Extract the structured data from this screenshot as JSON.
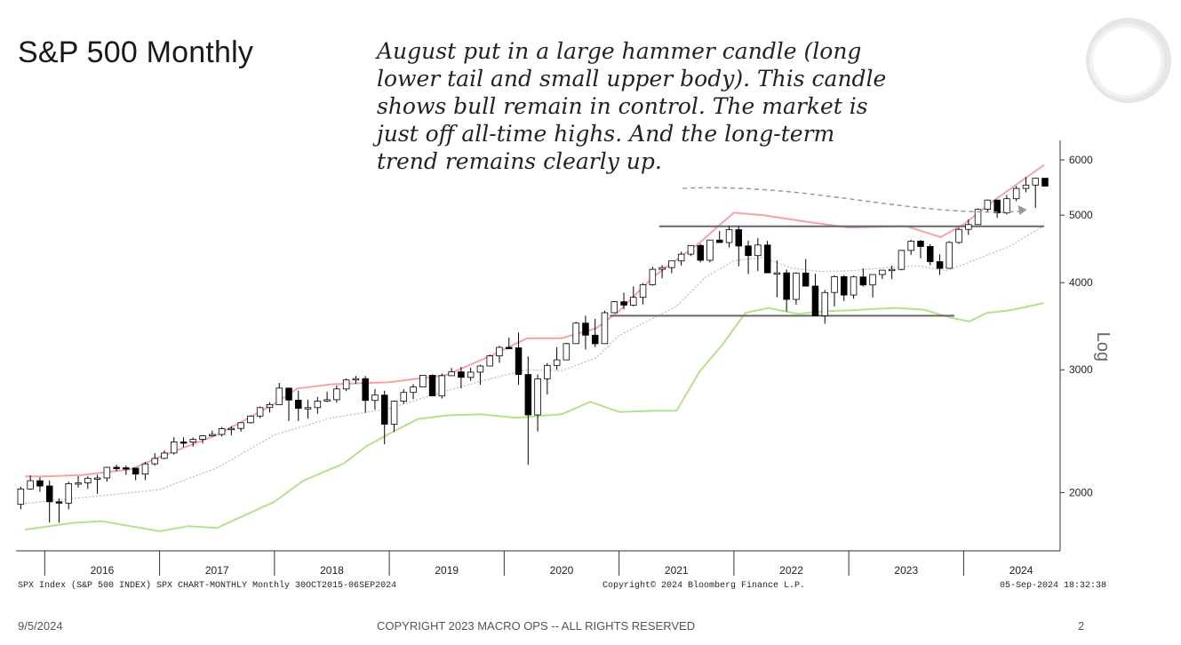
{
  "slide": {
    "title": "S&P 500 Monthly",
    "annotation_lines": [
      "August put in a large hammer candle (long",
      "lower tail and small upper body). This candle",
      "shows bull remain in control. The market is",
      "just off all-time highs. And the long-term",
      "trend remains clearly up."
    ],
    "footer": {
      "date": "9/5/2024",
      "copyright": "COPYRIGHT 2023 MACRO OPS -- ALL RIGHTS RESERVED",
      "page": "2"
    }
  },
  "chart_data": {
    "type": "candlestick",
    "title": "S&P 500 Monthly",
    "y_scale": "log",
    "ylabel": "Log",
    "y_ticks": [
      2000,
      3000,
      4000,
      5000,
      6000
    ],
    "ylim": [
      1650,
      6400
    ],
    "x_labels": [
      "2016",
      "2017",
      "2018",
      "2019",
      "2020",
      "2021",
      "2022",
      "2023",
      "2024"
    ],
    "x_range": [
      "2015-10",
      "2024-09"
    ],
    "grid": false,
    "source_left": "SPX Index (S&P 500 INDEX) SPX CHART-MONTHLY  Monthly 30OCT2015-06SEP2024",
    "source_center": "Copyright© 2024 Bloomberg Finance L.P.",
    "source_right": "05-Sep-2024 18:32:38",
    "colors": {
      "up": "#ffffff",
      "down": "#000000",
      "upper_band": "#f4a3a8",
      "lower_band": "#b5e08c",
      "mid_line": "#bbbbbb",
      "level_line": "#666666"
    },
    "candles_ohlc_monthly_from_2015_10": [
      [
        1924,
        2039,
        1893,
        2024
      ],
      [
        2024,
        2116,
        2019,
        2080
      ],
      [
        2080,
        2104,
        2005,
        2044
      ],
      [
        2044,
        2081,
        1812,
        1940
      ],
      [
        1940,
        1962,
        1810,
        1932
      ],
      [
        1932,
        2073,
        1892,
        2060
      ],
      [
        2060,
        2111,
        2033,
        2065
      ],
      [
        2065,
        2111,
        2025,
        2097
      ],
      [
        2097,
        2121,
        1992,
        2099
      ],
      [
        2099,
        2178,
        2074,
        2174
      ],
      [
        2174,
        2193,
        2147,
        2171
      ],
      [
        2171,
        2188,
        2120,
        2168
      ],
      [
        2168,
        2169,
        2083,
        2126
      ],
      [
        2126,
        2214,
        2084,
        2199
      ],
      [
        2199,
        2278,
        2187,
        2239
      ],
      [
        2239,
        2300,
        2233,
        2279
      ],
      [
        2279,
        2401,
        2268,
        2364
      ],
      [
        2364,
        2400,
        2322,
        2363
      ],
      [
        2363,
        2399,
        2328,
        2384
      ],
      [
        2384,
        2418,
        2352,
        2412
      ],
      [
        2412,
        2454,
        2405,
        2423
      ],
      [
        2423,
        2484,
        2407,
        2470
      ],
      [
        2470,
        2491,
        2417,
        2472
      ],
      [
        2472,
        2520,
        2446,
        2519
      ],
      [
        2519,
        2582,
        2511,
        2575
      ],
      [
        2575,
        2657,
        2557,
        2648
      ],
      [
        2648,
        2695,
        2605,
        2674
      ],
      [
        2674,
        2873,
        2674,
        2824
      ],
      [
        2824,
        2790,
        2533,
        2714
      ],
      [
        2714,
        2801,
        2533,
        2641
      ],
      [
        2641,
        2718,
        2553,
        2648
      ],
      [
        2648,
        2742,
        2594,
        2705
      ],
      [
        2705,
        2791,
        2698,
        2718
      ],
      [
        2718,
        2848,
        2691,
        2816
      ],
      [
        2816,
        2916,
        2796,
        2901
      ],
      [
        2901,
        2941,
        2864,
        2914
      ],
      [
        2914,
        2940,
        2603,
        2712
      ],
      [
        2712,
        2815,
        2631,
        2760
      ],
      [
        2760,
        2800,
        2346,
        2507
      ],
      [
        2507,
        2708,
        2443,
        2704
      ],
      [
        2704,
        2814,
        2681,
        2784
      ],
      [
        2784,
        2861,
        2722,
        2834
      ],
      [
        2834,
        2949,
        2848,
        2946
      ],
      [
        2946,
        2955,
        2751,
        2752
      ],
      [
        2752,
        2964,
        2728,
        2942
      ],
      [
        2942,
        3018,
        2952,
        2980
      ],
      [
        2980,
        3028,
        2822,
        2926
      ],
      [
        2926,
        3022,
        2892,
        2977
      ],
      [
        2977,
        3050,
        2856,
        3038
      ],
      [
        3038,
        3154,
        3050,
        3141
      ],
      [
        3141,
        3247,
        3070,
        3231
      ],
      [
        3231,
        3337,
        3214,
        3226
      ],
      [
        3226,
        3394,
        2855,
        2954
      ],
      [
        2954,
        3136,
        2192,
        2585
      ],
      [
        2585,
        2954,
        2447,
        2912
      ],
      [
        2912,
        3068,
        2766,
        3044
      ],
      [
        3044,
        3233,
        2999,
        3100
      ],
      [
        3100,
        3280,
        3101,
        3271
      ],
      [
        3271,
        3515,
        3284,
        3500
      ],
      [
        3500,
        3588,
        3209,
        3363
      ],
      [
        3363,
        3550,
        3233,
        3270
      ],
      [
        3270,
        3646,
        3279,
        3622
      ],
      [
        3622,
        3760,
        3662,
        3756
      ],
      [
        3756,
        3870,
        3662,
        3714
      ],
      [
        3714,
        3951,
        3700,
        3811
      ],
      [
        3811,
        3995,
        3723,
        3973
      ],
      [
        3973,
        4218,
        3960,
        4181
      ],
      [
        4181,
        4238,
        4056,
        4204
      ],
      [
        4204,
        4257,
        4127,
        4298
      ],
      [
        4298,
        4430,
        4233,
        4395
      ],
      [
        4395,
        4482,
        4367,
        4523
      ],
      [
        4523,
        4546,
        4278,
        4307
      ],
      [
        4307,
        4609,
        4279,
        4605
      ],
      [
        4605,
        4743,
        4560,
        4567
      ],
      [
        4567,
        4818,
        4495,
        4766
      ],
      [
        4766,
        4819,
        4222,
        4516
      ],
      [
        4516,
        4595,
        4115,
        4374
      ],
      [
        4374,
        4637,
        4157,
        4530
      ],
      [
        4530,
        4593,
        4129,
        4132
      ],
      [
        4132,
        4307,
        3810,
        4132
      ],
      [
        4132,
        4177,
        3637,
        3785
      ],
      [
        3785,
        4140,
        3721,
        4130
      ],
      [
        4130,
        4325,
        3954,
        3955
      ],
      [
        3955,
        4119,
        3584,
        3586
      ],
      [
        3586,
        3905,
        3492,
        3872
      ],
      [
        3872,
        4100,
        3698,
        4080
      ],
      [
        4080,
        4101,
        3764,
        3840
      ],
      [
        3840,
        4094,
        3794,
        4077
      ],
      [
        4077,
        4195,
        3950,
        3970
      ],
      [
        3970,
        4078,
        3809,
        4109
      ],
      [
        4109,
        4170,
        4049,
        4169
      ],
      [
        4169,
        4231,
        4048,
        4180
      ],
      [
        4180,
        4458,
        4166,
        4450
      ],
      [
        4450,
        4607,
        4385,
        4589
      ],
      [
        4589,
        4607,
        4335,
        4508
      ],
      [
        4508,
        4541,
        4238,
        4288
      ],
      [
        4288,
        4393,
        4104,
        4194
      ],
      [
        4194,
        4587,
        4194,
        4568
      ],
      [
        4568,
        4793,
        4547,
        4770
      ],
      [
        4770,
        4931,
        4683,
        4846
      ],
      [
        4846,
        5111,
        4845,
        5096
      ],
      [
        5096,
        5265,
        5056,
        5254
      ],
      [
        5254,
        5264,
        4954,
        5036
      ],
      [
        5036,
        5342,
        5011,
        5278
      ],
      [
        5278,
        5505,
        5234,
        5460
      ],
      [
        5460,
        5670,
        5390,
        5522
      ],
      [
        5522,
        5651,
        5120,
        5648
      ],
      [
        5648,
        5651,
        5528,
        5503
      ]
    ],
    "upper_band_levels": [
      [
        2015.83,
        2110
      ],
      [
        2016.0,
        2110
      ],
      [
        2016.33,
        2120
      ],
      [
        2016.75,
        2160
      ],
      [
        2017.0,
        2250
      ],
      [
        2017.5,
        2420
      ],
      [
        2018.0,
        2680
      ],
      [
        2018.2,
        2820
      ],
      [
        2018.5,
        2860
      ],
      [
        2019.0,
        2880
      ],
      [
        2019.5,
        2950
      ],
      [
        2019.9,
        3150
      ],
      [
        2020.2,
        3330
      ],
      [
        2020.5,
        3330
      ],
      [
        2020.8,
        3440
      ],
      [
        2021.0,
        3640
      ],
      [
        2021.3,
        4080
      ],
      [
        2021.7,
        4560
      ],
      [
        2021.85,
        4800
      ],
      [
        2022.0,
        5040
      ],
      [
        2022.25,
        5000
      ],
      [
        2022.6,
        4900
      ],
      [
        2023.0,
        4800
      ],
      [
        2023.5,
        4820
      ],
      [
        2023.8,
        4650
      ],
      [
        2024.0,
        4850
      ],
      [
        2024.3,
        5300
      ],
      [
        2024.7,
        5900
      ]
    ],
    "lower_band_levels": [
      [
        2015.83,
        1770
      ],
      [
        2016.25,
        1810
      ],
      [
        2016.5,
        1820
      ],
      [
        2017.0,
        1760
      ],
      [
        2017.25,
        1790
      ],
      [
        2017.5,
        1780
      ],
      [
        2018.0,
        1940
      ],
      [
        2018.25,
        2080
      ],
      [
        2018.6,
        2200
      ],
      [
        2018.8,
        2330
      ],
      [
        2019.0,
        2430
      ],
      [
        2019.25,
        2550
      ],
      [
        2019.5,
        2580
      ],
      [
        2019.8,
        2590
      ],
      [
        2020.1,
        2560
      ],
      [
        2020.5,
        2590
      ],
      [
        2020.75,
        2700
      ],
      [
        2021.0,
        2610
      ],
      [
        2021.3,
        2620
      ],
      [
        2021.5,
        2620
      ],
      [
        2021.7,
        2980
      ],
      [
        2021.9,
        3260
      ],
      [
        2022.1,
        3620
      ],
      [
        2022.3,
        3680
      ],
      [
        2022.55,
        3610
      ],
      [
        2022.8,
        3640
      ],
      [
        2023.0,
        3650
      ],
      [
        2023.4,
        3680
      ],
      [
        2023.65,
        3660
      ],
      [
        2023.9,
        3560
      ],
      [
        2024.05,
        3520
      ],
      [
        2024.2,
        3620
      ],
      [
        2024.4,
        3650
      ],
      [
        2024.7,
        3740
      ]
    ],
    "mid_line_levels": [
      [
        2015.83,
        1930
      ],
      [
        2016.5,
        1980
      ],
      [
        2017.0,
        2020
      ],
      [
        2017.5,
        2170
      ],
      [
        2018.0,
        2420
      ],
      [
        2018.5,
        2560
      ],
      [
        2019.0,
        2640
      ],
      [
        2019.5,
        2800
      ],
      [
        2019.9,
        2920
      ],
      [
        2020.2,
        3000
      ],
      [
        2020.5,
        2990
      ],
      [
        2020.8,
        3120
      ],
      [
        2021.0,
        3360
      ],
      [
        2021.5,
        3700
      ],
      [
        2021.75,
        4070
      ],
      [
        2022.0,
        4300
      ],
      [
        2022.25,
        4350
      ],
      [
        2022.5,
        4200
      ],
      [
        2022.75,
        4150
      ],
      [
        2023.0,
        4160
      ],
      [
        2023.3,
        4200
      ],
      [
        2023.6,
        4230
      ],
      [
        2023.85,
        4160
      ],
      [
        2024.0,
        4250
      ],
      [
        2024.4,
        4510
      ],
      [
        2024.7,
        4830
      ]
    ],
    "horizontal_levels": [
      {
        "value": 4818,
        "from": 2021.35,
        "to": 2024.7
      },
      {
        "value": 3586,
        "from": 2020.92,
        "to": 2023.92
      }
    ]
  }
}
